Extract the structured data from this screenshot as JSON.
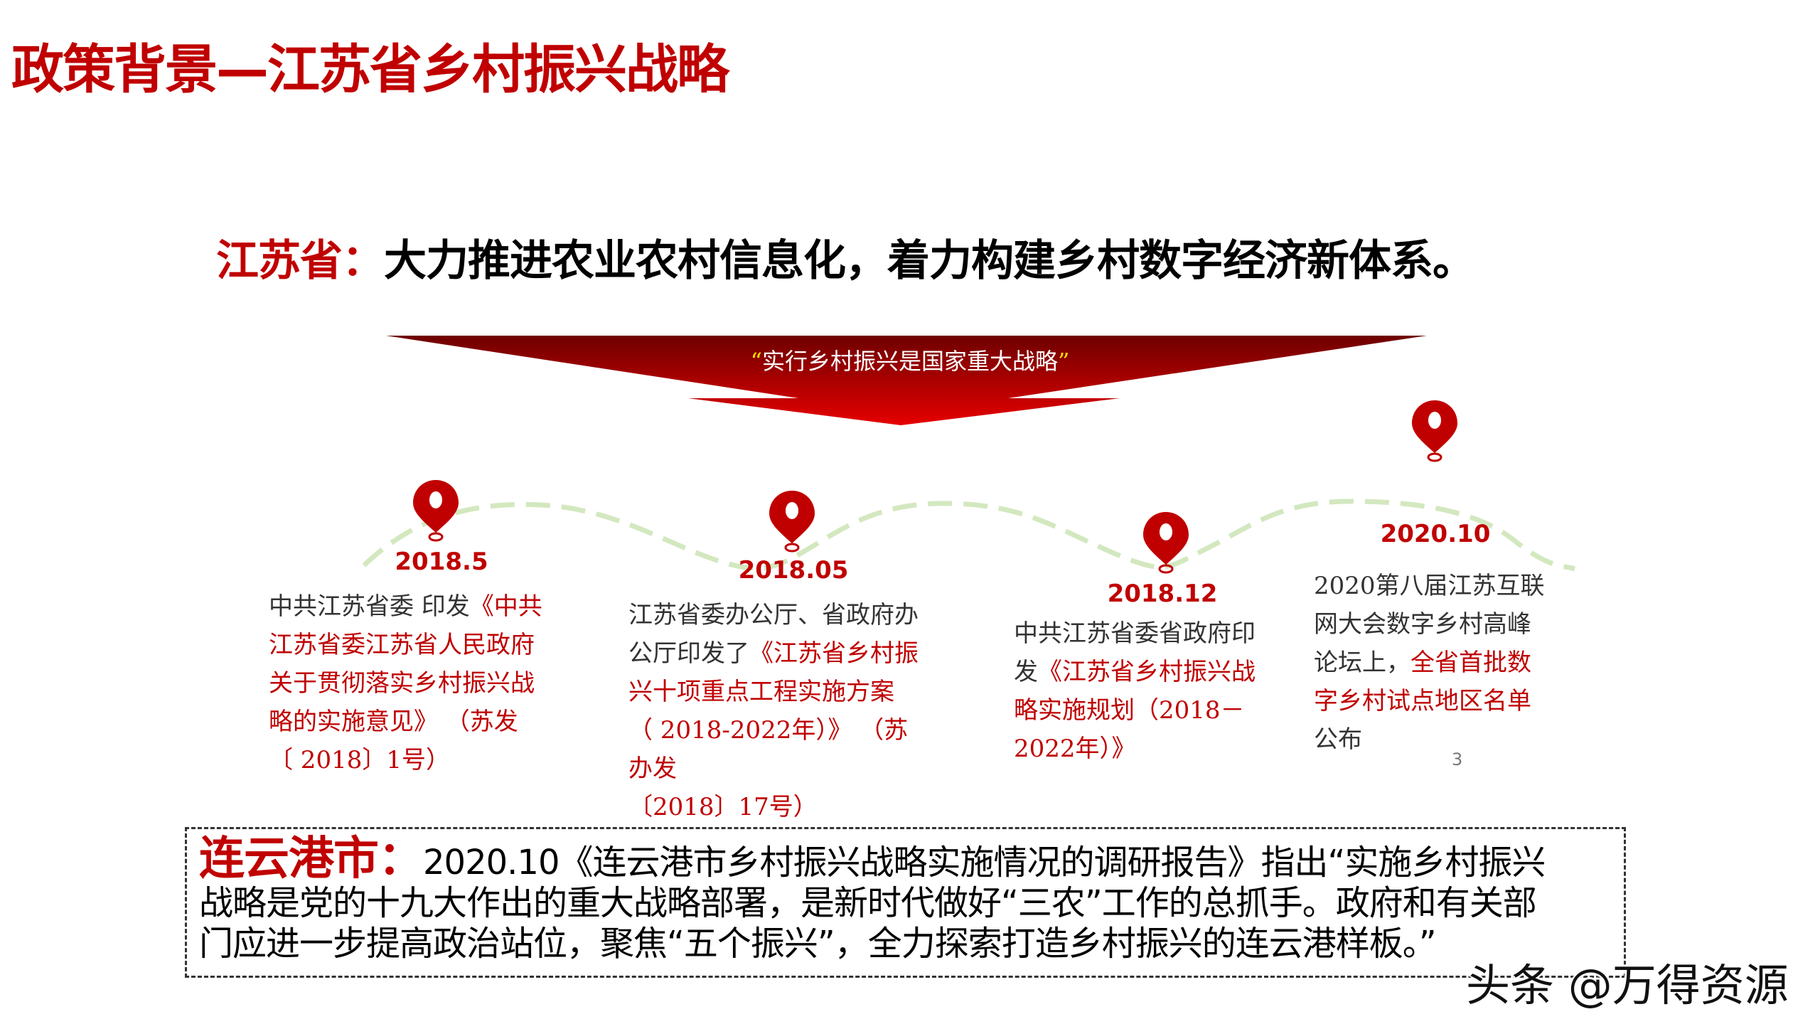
{
  "title": "政策背景—江苏省乡村振兴战略",
  "subtitle": {
    "label": "江苏省：",
    "text": "大力推进农业农村信息化，着力构建乡村数字经济新体系。"
  },
  "banner": {
    "open_quote": "“",
    "text": "实行乡村振兴是国家重大战略",
    "close_quote": "”"
  },
  "colors": {
    "accent": "#c00000",
    "timeline": "#d3e8bf",
    "banner_top": "#6e0000",
    "banner_bottom": "#e60000"
  },
  "timeline": [
    {
      "date": "2018.5",
      "icon": "map-pin-icon",
      "lines": [
        [
          {
            "t": "中共江苏省委 印发",
            "c": "k"
          },
          {
            "t": "《中共",
            "c": "r"
          }
        ],
        [
          {
            "t": "江苏省委江苏省人民政府",
            "c": "r"
          }
        ],
        [
          {
            "t": "关于贯彻落实乡村振兴战",
            "c": "r"
          }
        ],
        [
          {
            "t": "略的实施意见》 （苏发",
            "c": "r"
          }
        ],
        [
          {
            "t": "〔 2018〕1号）",
            "c": "r"
          }
        ]
      ]
    },
    {
      "date": "2018.05",
      "icon": "map-pin-icon",
      "lines": [
        [
          {
            "t": "江苏省委办公厅、省政府办",
            "c": "k"
          }
        ],
        [
          {
            "t": "公厅印发了",
            "c": "k"
          },
          {
            "t": "《江苏省乡村振",
            "c": "r"
          }
        ],
        [
          {
            "t": "兴十项重点工程实施方案",
            "c": "r"
          }
        ],
        [
          {
            "t": "（ 2018-2022年）》 （苏",
            "c": "r"
          }
        ],
        [
          {
            "t": "办发",
            "c": "r"
          }
        ],
        [
          {
            "t": "〔2018〕17号）",
            "c": "r"
          }
        ]
      ]
    },
    {
      "date": "2018.12",
      "icon": "map-pin-icon",
      "lines": [
        [
          {
            "t": "中共江苏省委省政府印",
            "c": "k"
          }
        ],
        [
          {
            "t": "发",
            "c": "k"
          },
          {
            "t": "《江苏省乡村振兴战",
            "c": "r"
          }
        ],
        [
          {
            "t": "略实施规划（2018－",
            "c": "r"
          }
        ],
        [
          {
            "t": "2022年）》",
            "c": "r"
          }
        ]
      ]
    },
    {
      "date": "2020.10",
      "icon": "map-pin-icon",
      "lines": [
        [
          {
            "t": "2020第八届江苏互联",
            "c": "k"
          }
        ],
        [
          {
            "t": "网大会数字乡村高峰",
            "c": "k"
          }
        ],
        [
          {
            "t": "论坛上，",
            "c": "k"
          },
          {
            "t": "全省首批数",
            "c": "r"
          }
        ],
        [
          {
            "t": "字乡村试点地区名单",
            "c": "r"
          }
        ],
        [
          {
            "t": "公布",
            "c": "k"
          }
        ]
      ]
    }
  ],
  "page_number": "3",
  "lianyungang": {
    "label": "连云港市：",
    "lines": [
      "2020.10《连云港市乡村振兴战略实施情况的调研报告》指出“实施乡村振兴",
      "战略是党的十九大作出的重大战略部署，是新时代做好“三农”工作的总抓手。政府和有关部",
      "门应进一步提高政治站位，聚焦“五个振兴”，全力探索打造乡村振兴的连云港样板。”"
    ]
  },
  "watermark": "头条 @万得资源"
}
